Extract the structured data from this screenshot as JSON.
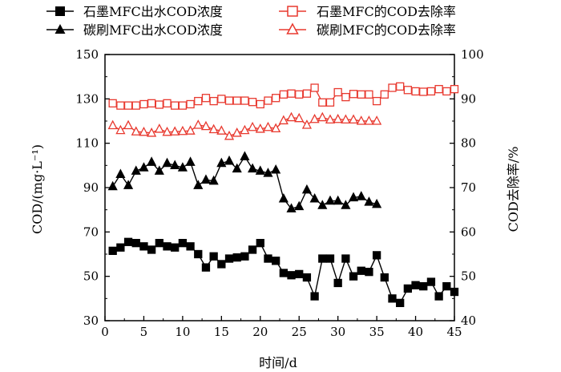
{
  "chart_data": {
    "type": "line",
    "title": "",
    "xlabel": "时间/d",
    "ylabel_left": "COD/(mg·L⁻¹)",
    "ylabel_right": "COD去除率/%",
    "xlim": [
      0,
      45
    ],
    "ylim_left": [
      30,
      150
    ],
    "ylim_right": [
      40,
      100
    ],
    "xticks": [
      0,
      5,
      10,
      15,
      20,
      25,
      30,
      35,
      40,
      45
    ],
    "yticks_left": [
      30,
      50,
      70,
      90,
      110,
      130,
      150
    ],
    "yticks_right": [
      40,
      50,
      60,
      70,
      80,
      90,
      100
    ],
    "legend_position": "top",
    "series": [
      {
        "name": "石墨MFC出水COD浓度",
        "axis": "left",
        "marker": "filled-square",
        "color": "#000000",
        "x": [
          1,
          2,
          3,
          4,
          5,
          6,
          7,
          8,
          9,
          10,
          11,
          12,
          13,
          14,
          15,
          16,
          17,
          18,
          19,
          20,
          21,
          22,
          23,
          24,
          25,
          26,
          27,
          28,
          29,
          30,
          31,
          32,
          33,
          34,
          35,
          36,
          37,
          38,
          39,
          40,
          41,
          42,
          43,
          44,
          45
        ],
        "y": [
          61.5,
          63,
          65.5,
          65,
          63.5,
          62,
          65,
          63.5,
          63,
          65,
          63.5,
          60,
          54,
          59,
          55.5,
          58,
          58.5,
          59,
          62,
          65,
          58,
          57,
          51.5,
          50.5,
          51,
          49.5,
          41,
          58,
          58,
          47,
          58,
          50,
          52.5,
          52,
          59.5,
          49.5,
          40,
          38,
          44.5,
          46,
          45.5,
          47.5,
          41,
          45.5,
          43
        ]
      },
      {
        "name": "碳刷MFC出水COD浓度",
        "axis": "left",
        "marker": "filled-triangle",
        "color": "#000000",
        "x": [
          1,
          2,
          3,
          4,
          5,
          6,
          7,
          8,
          9,
          10,
          11,
          12,
          13,
          14,
          15,
          16,
          17,
          18,
          19,
          20,
          21,
          22,
          23,
          24,
          25,
          26,
          27,
          28,
          29,
          30,
          31,
          32,
          33,
          34,
          35
        ],
        "y": [
          90.5,
          96,
          91,
          97.5,
          99,
          101.5,
          97.5,
          101,
          100,
          99,
          101.5,
          91,
          93.5,
          93,
          101,
          102,
          98.5,
          104,
          98.5,
          97.5,
          96.5,
          98,
          85,
          80.5,
          81.5,
          89,
          85,
          82,
          84,
          84,
          82,
          85.5,
          86,
          83.5,
          82.5
        ]
      },
      {
        "name": "石墨MFC的COD去除率",
        "axis": "right",
        "marker": "open-square",
        "color": "#e8392f",
        "x": [
          1,
          2,
          3,
          4,
          5,
          6,
          7,
          8,
          9,
          10,
          11,
          12,
          13,
          14,
          15,
          16,
          17,
          18,
          19,
          20,
          21,
          22,
          23,
          24,
          25,
          26,
          27,
          28,
          29,
          30,
          31,
          32,
          33,
          34,
          35,
          36,
          37,
          38,
          39,
          40,
          41,
          42,
          43,
          44,
          45
        ],
        "y": [
          89,
          88.5,
          88.5,
          88.5,
          88.8,
          89,
          88.7,
          89,
          88.5,
          88.5,
          88.8,
          89.5,
          90.2,
          89.5,
          90,
          89.6,
          89.6,
          89.6,
          89.3,
          88.8,
          89.6,
          90.2,
          91,
          91.2,
          91,
          91.2,
          92.5,
          89.2,
          89.2,
          91.5,
          90.4,
          91.1,
          91,
          91,
          89.5,
          91,
          92.5,
          92.8,
          92,
          91.7,
          91.6,
          91.7,
          92.2,
          91.7,
          92.2
        ]
      },
      {
        "name": "碳刷MFC的COD去除率",
        "axis": "right",
        "marker": "open-triangle",
        "color": "#e8392f",
        "x": [
          1,
          2,
          3,
          4,
          5,
          6,
          7,
          8,
          9,
          10,
          11,
          12,
          13,
          14,
          15,
          16,
          17,
          18,
          19,
          20,
          21,
          22,
          23,
          24,
          25,
          26,
          27,
          28,
          29,
          30,
          31,
          32,
          33,
          34,
          35
        ],
        "y": [
          84,
          82.9,
          84,
          82.6,
          82.5,
          82.3,
          83.2,
          82.5,
          82.6,
          82.7,
          82.8,
          84.1,
          83.8,
          83.1,
          82.8,
          81.6,
          82.3,
          82.9,
          83.6,
          83.2,
          83.6,
          83.3,
          85.1,
          85.8,
          85.6,
          84.1,
          85.4,
          85.8,
          85.3,
          85.4,
          85.3,
          85.3,
          85,
          85,
          85
        ]
      }
    ]
  }
}
